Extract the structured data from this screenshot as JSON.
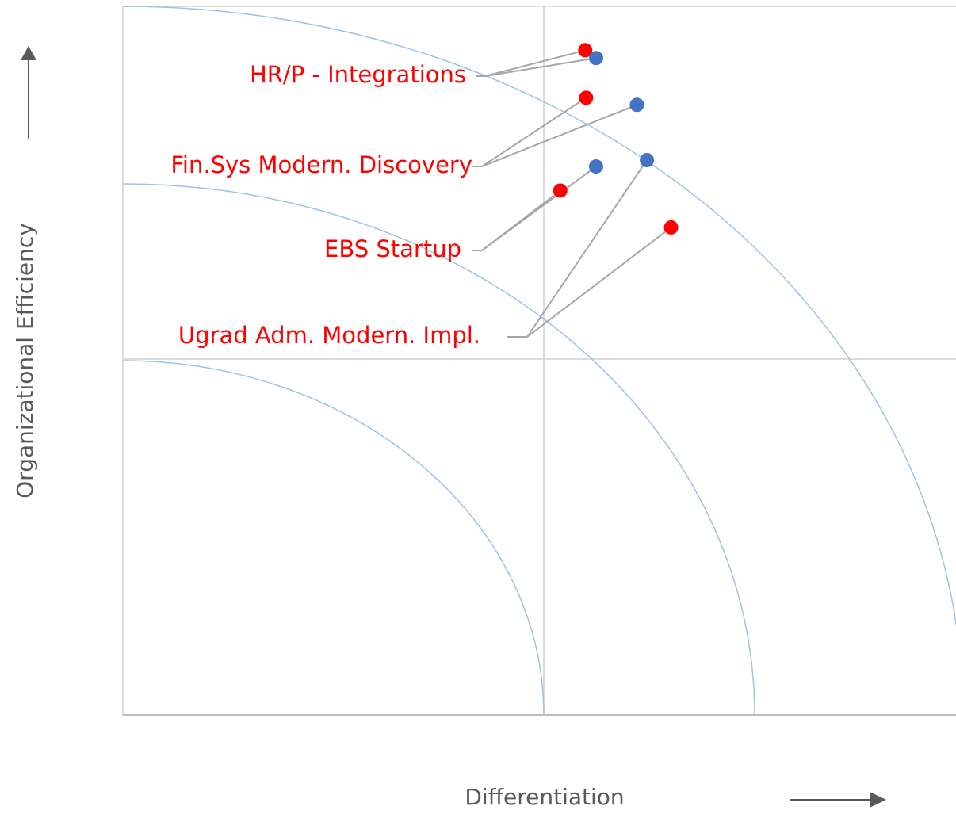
{
  "chart_data": {
    "type": "scatter",
    "xlabel": "Differentiation",
    "ylabel": "Organizational Efficiency",
    "xlim": [
      0,
      100
    ],
    "ylim": [
      0,
      100
    ],
    "series": [
      {
        "color": "#ff0000",
        "x": [
          55.5,
          55.6,
          52.5,
          65.8
        ],
        "values": [
          93.8,
          87.1,
          74.0,
          68.8
        ]
      },
      {
        "color": "#4472c4",
        "x": [
          56.8,
          61.7,
          56.8,
          62.9
        ],
        "values": [
          92.7,
          86.1,
          77.4,
          78.3
        ]
      }
    ],
    "annotations": [
      "HR/P - Integrations",
      "Fin.Sys Modern. Discovery",
      "EBS Startup",
      "Ugrad Adm. Modern. Impl."
    ],
    "annotation_color": "#ff0000"
  }
}
